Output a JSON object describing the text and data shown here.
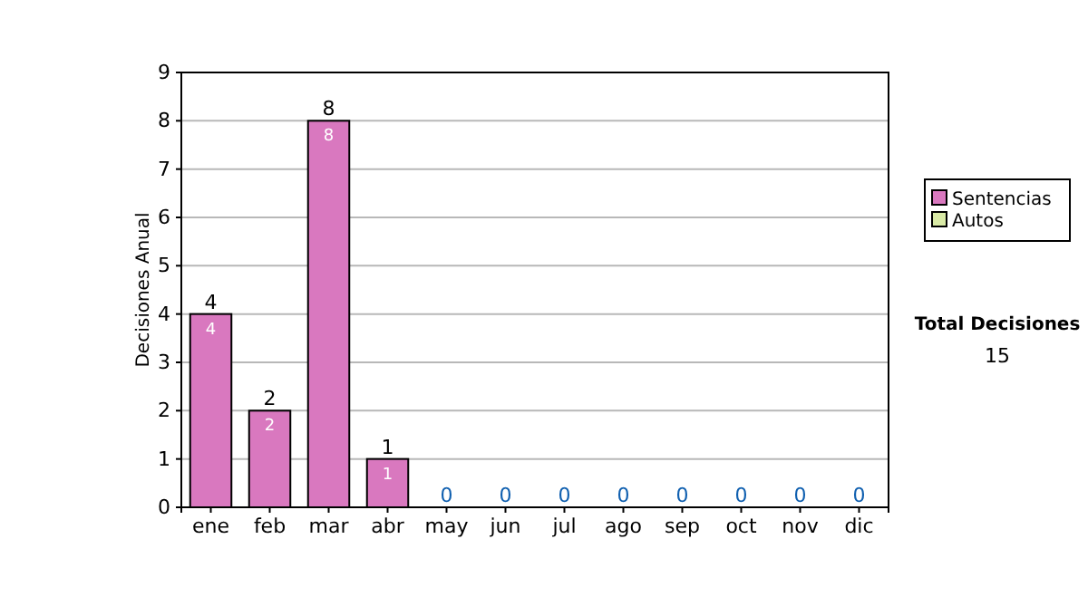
{
  "chart_data": {
    "type": "bar",
    "stacked": true,
    "ylabel": "Decisiones Anual",
    "categories": [
      "ene",
      "feb",
      "mar",
      "abr",
      "may",
      "jun",
      "jul",
      "ago",
      "sep",
      "oct",
      "nov",
      "dic"
    ],
    "series": [
      {
        "name": "Sentencias",
        "color": "#d978bf",
        "values": [
          4,
          2,
          8,
          1,
          0,
          0,
          0,
          0,
          0,
          0,
          0,
          0
        ],
        "value_labels": [
          "4",
          "2",
          "8",
          "1",
          null,
          null,
          null,
          null,
          null,
          null,
          null,
          null
        ]
      },
      {
        "name": "Autos",
        "color": "#d9eaa6",
        "values": [
          0,
          0,
          0,
          0,
          0,
          0,
          0,
          0,
          0,
          0,
          0,
          0
        ]
      }
    ],
    "totals": [
      "4",
      "2",
      "8",
      "1",
      "0",
      "0",
      "0",
      "0",
      "0",
      "0",
      "0",
      "0"
    ],
    "ylim": [
      0,
      9
    ],
    "yticks": [
      0,
      1,
      2,
      3,
      4,
      5,
      6,
      7,
      8,
      9
    ],
    "grid": "y",
    "legend": "right",
    "annotations": [
      "Total Decisiones",
      "15"
    ]
  }
}
